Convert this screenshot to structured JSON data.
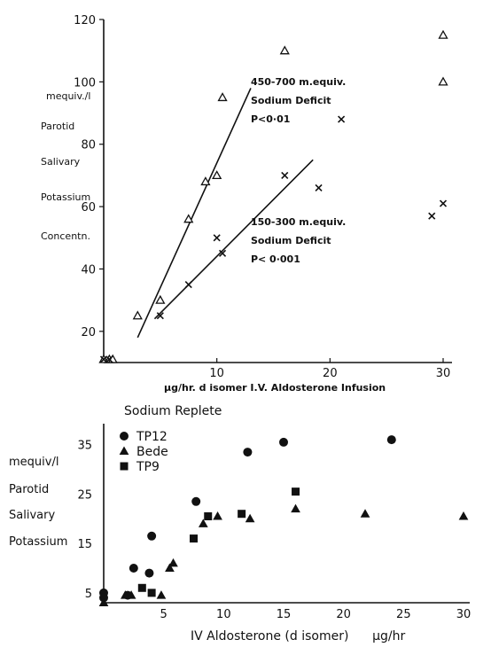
{
  "chart_data": [
    {
      "type": "scatter",
      "title": "",
      "xlabel": "μg/hr. d isomer I.V. Aldosterone Infusion",
      "ylabel_lines": [
        "mequiv./l",
        "Parotid",
        "Salivary",
        "Potassium",
        "Concentn."
      ],
      "xlim": [
        0,
        30
      ],
      "ylim": [
        10,
        120
      ],
      "x_ticks": [
        "10",
        "20",
        "30"
      ],
      "y_ticks": [
        "20",
        "40",
        "60",
        "80",
        "100",
        "120"
      ],
      "grid": false,
      "series": [
        {
          "marker": "triangle",
          "points": [
            [
              0,
              11
            ],
            [
              0.5,
              11
            ],
            [
              0.8,
              11
            ],
            [
              3,
              25
            ],
            [
              5,
              30
            ],
            [
              7.5,
              56
            ],
            [
              9,
              68
            ],
            [
              10,
              70
            ],
            [
              10.5,
              95
            ],
            [
              16,
              110
            ],
            [
              30,
              100
            ],
            [
              30,
              115
            ]
          ]
        },
        {
          "marker": "cross",
          "points": [
            [
              0,
              11
            ],
            [
              0.5,
              11
            ],
            [
              5,
              25
            ],
            [
              7.5,
              35
            ],
            [
              10,
              50
            ],
            [
              10.5,
              45
            ],
            [
              16,
              70
            ],
            [
              19,
              66
            ],
            [
              21,
              88
            ],
            [
              29,
              57
            ],
            [
              30,
              61
            ]
          ]
        }
      ],
      "fit_lines": [
        {
          "from": [
            3,
            18
          ],
          "to": [
            13,
            98
          ]
        },
        {
          "from": [
            4.5,
            24
          ],
          "to": [
            18.5,
            75
          ]
        }
      ],
      "annotations": [
        {
          "lines": [
            "450-700 m.equiv.",
            "Sodium Deficit",
            "P<0·01"
          ],
          "anchor": [
            13,
            99
          ]
        },
        {
          "lines": [
            "150-300 m.equiv.",
            "Sodium Deficit",
            "P< 0·001"
          ],
          "anchor": [
            13,
            54
          ]
        }
      ]
    },
    {
      "type": "scatter",
      "title": "Sodium Replete",
      "xlabel": "IV Aldosterone (d isomer)      μg/hr",
      "ylabel_lines": [
        "mequiv/l",
        "Parotid",
        "Salivary",
        "Potassium"
      ],
      "xlim": [
        0,
        30
      ],
      "ylim": [
        3,
        38
      ],
      "x_ticks": [
        "5",
        "10",
        "15",
        "20",
        "25",
        "30"
      ],
      "y_ticks": [
        "5",
        "15",
        "25",
        "35"
      ],
      "grid": false,
      "legend_position": "top-left",
      "series": [
        {
          "name": "TP12",
          "marker": "circle",
          "points": [
            [
              0,
              5
            ],
            [
              0,
              4
            ],
            [
              2,
              4.5
            ],
            [
              2.5,
              10
            ],
            [
              3.8,
              9
            ],
            [
              4,
              16.5
            ],
            [
              7.7,
              23.5
            ],
            [
              12,
              33.5
            ],
            [
              15,
              35.5
            ],
            [
              24,
              36
            ]
          ]
        },
        {
          "name": "Bede",
          "marker": "triangle",
          "points": [
            [
              0,
              3
            ],
            [
              1.8,
              4.5
            ],
            [
              2.3,
              4.5
            ],
            [
              4.8,
              4.5
            ],
            [
              5.5,
              10
            ],
            [
              5.8,
              11
            ],
            [
              8.3,
              19
            ],
            [
              9.5,
              20.5
            ],
            [
              12.2,
              20
            ],
            [
              16,
              22
            ],
            [
              21.8,
              21
            ],
            [
              30,
              20.5
            ]
          ]
        },
        {
          "name": "TP9",
          "marker": "square",
          "points": [
            [
              3.2,
              6
            ],
            [
              4,
              5
            ],
            [
              7.5,
              16
            ],
            [
              8.7,
              20.5
            ],
            [
              11.5,
              21
            ],
            [
              16,
              25.5
            ]
          ]
        }
      ]
    }
  ]
}
